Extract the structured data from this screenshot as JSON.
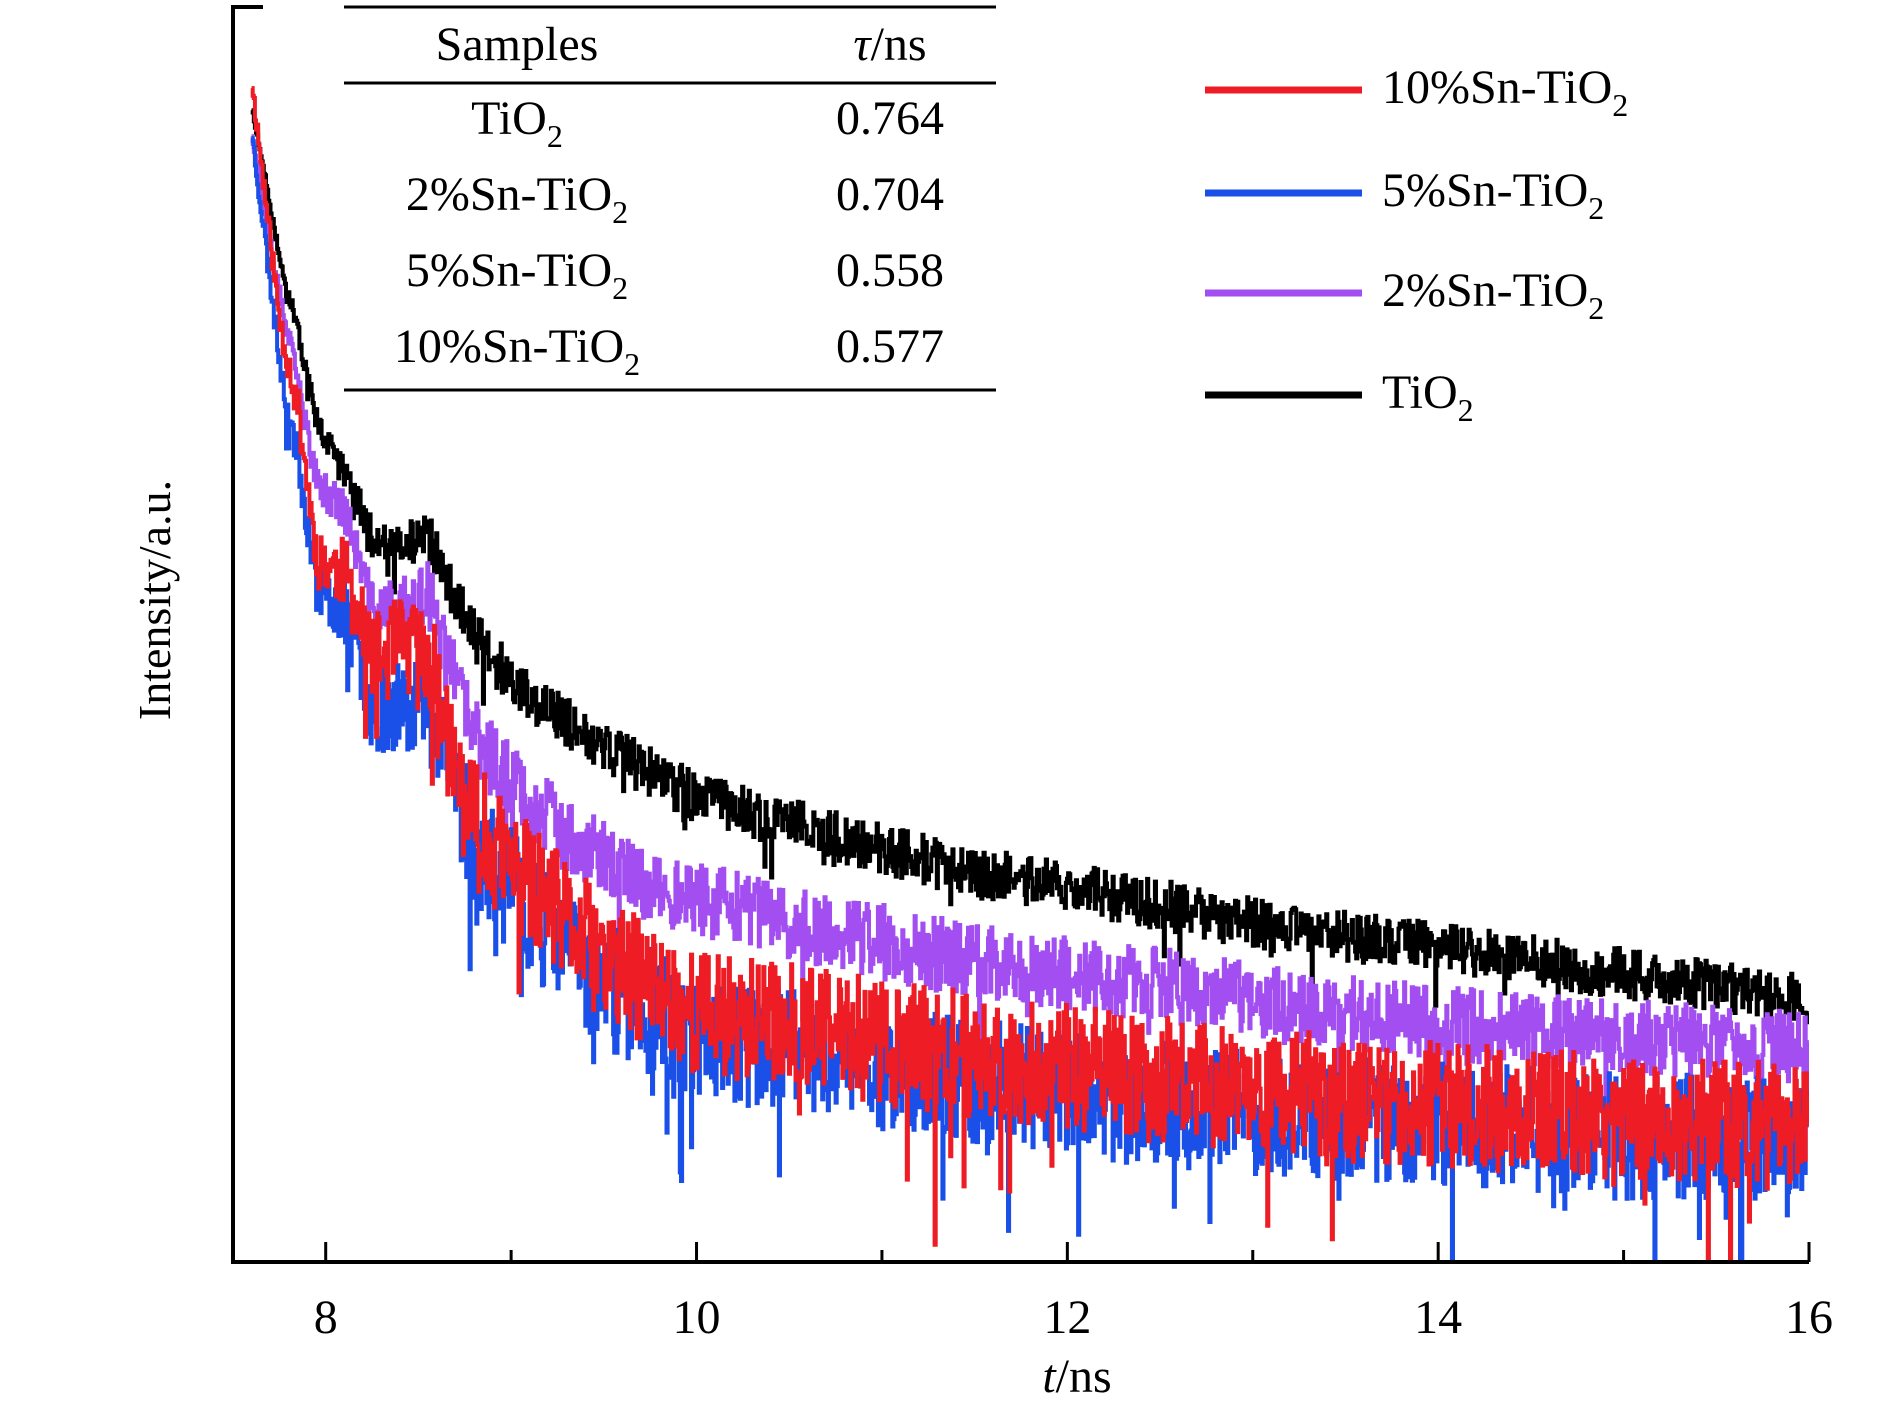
{
  "chart_data": {
    "type": "line",
    "xlabel": {
      "italic": "t",
      "rest": "/ns"
    },
    "ylabel": "Intensity/a.u.",
    "xlim": [
      7.5,
      16
    ],
    "ylim": [
      0,
      1
    ],
    "x_ticks": [
      {
        "value": 8,
        "label": "8"
      },
      {
        "value": 10,
        "label": "10"
      },
      {
        "value": 12,
        "label": "12"
      },
      {
        "value": 14,
        "label": "14"
      },
      {
        "value": 16,
        "label": "16"
      }
    ],
    "y_ticks": [],
    "legend_position": "top-right",
    "series": [
      {
        "name": {
          "main": "10%Sn-TiO",
          "sub": "2"
        },
        "color": "#ee1c24",
        "x": [
          7.6,
          7.75,
          7.85,
          7.95,
          8.1,
          8.25,
          8.4,
          8.55,
          8.7,
          8.8,
          8.9,
          9.1,
          9.3,
          9.5,
          9.75,
          10.0,
          10.5,
          11.0,
          11.5,
          12.0,
          12.5,
          13.0,
          13.5,
          14.0,
          14.5,
          15.0,
          15.5,
          16.0
        ],
        "y": [
          0.94,
          0.75,
          0.68,
          0.56,
          0.55,
          0.48,
          0.49,
          0.48,
          0.39,
          0.35,
          0.33,
          0.3,
          0.27,
          0.24,
          0.22,
          0.2,
          0.19,
          0.175,
          0.165,
          0.155,
          0.145,
          0.14,
          0.13,
          0.125,
          0.12,
          0.115,
          0.11,
          0.11
        ],
        "noise": 0.05,
        "seed": 11
      },
      {
        "name": {
          "main": "5%Sn-TiO",
          "sub": "2"
        },
        "color": "#1a4fe8",
        "x": [
          7.6,
          7.75,
          7.85,
          7.95,
          8.1,
          8.25,
          8.4,
          8.55,
          8.7,
          8.8,
          8.9,
          9.1,
          9.3,
          9.5,
          9.75,
          10.0,
          10.5,
          11.0,
          11.5,
          12.0,
          12.5,
          13.0,
          13.5,
          14.0,
          14.5,
          15.0,
          15.5,
          16.0
        ],
        "y": [
          0.9,
          0.72,
          0.64,
          0.54,
          0.52,
          0.44,
          0.45,
          0.45,
          0.38,
          0.33,
          0.31,
          0.28,
          0.25,
          0.22,
          0.2,
          0.18,
          0.17,
          0.155,
          0.145,
          0.135,
          0.125,
          0.12,
          0.115,
          0.11,
          0.105,
          0.1,
          0.1,
          0.1
        ],
        "noise": 0.05,
        "seed": 23
      },
      {
        "name": {
          "main": "2%Sn-TiO",
          "sub": "2"
        },
        "color": "#a24ef0",
        "x": [
          7.6,
          7.75,
          7.85,
          7.95,
          8.1,
          8.25,
          8.4,
          8.55,
          8.7,
          8.8,
          8.9,
          9.1,
          9.3,
          9.5,
          9.75,
          10.0,
          10.5,
          11.0,
          11.5,
          12.0,
          12.5,
          13.0,
          13.5,
          14.0,
          14.5,
          15.0,
          15.5,
          16.0
        ],
        "y": [
          0.9,
          0.77,
          0.7,
          0.62,
          0.6,
          0.52,
          0.52,
          0.53,
          0.46,
          0.42,
          0.4,
          0.37,
          0.34,
          0.32,
          0.3,
          0.29,
          0.27,
          0.255,
          0.24,
          0.23,
          0.22,
          0.21,
          0.2,
          0.19,
          0.185,
          0.18,
          0.175,
          0.17
        ],
        "noise": 0.03,
        "seed": 37
      },
      {
        "name": {
          "main": "TiO",
          "sub": "2"
        },
        "color": "#000000",
        "x": [
          7.6,
          7.75,
          7.85,
          7.95,
          8.1,
          8.25,
          8.4,
          8.55,
          8.7,
          8.8,
          8.9,
          9.1,
          9.3,
          9.5,
          9.75,
          10.0,
          10.5,
          11.0,
          11.5,
          12.0,
          12.5,
          13.0,
          13.5,
          14.0,
          14.5,
          15.0,
          15.5,
          16.0
        ],
        "y": [
          0.92,
          0.8,
          0.74,
          0.67,
          0.63,
          0.58,
          0.57,
          0.58,
          0.53,
          0.5,
          0.48,
          0.45,
          0.43,
          0.41,
          0.39,
          0.37,
          0.35,
          0.33,
          0.31,
          0.3,
          0.285,
          0.27,
          0.26,
          0.25,
          0.24,
          0.23,
          0.22,
          0.21
        ],
        "noise": 0.02,
        "seed": 51
      }
    ],
    "inset_table": {
      "headers": [
        {
          "main": "Samples"
        },
        {
          "italic": "τ",
          "main": "/ns"
        }
      ],
      "rows": [
        {
          "sample": {
            "main": "TiO",
            "sub": "2"
          },
          "tau": "0.764"
        },
        {
          "sample": {
            "main": "2%Sn-TiO",
            "sub": "2"
          },
          "tau": "0.704"
        },
        {
          "sample": {
            "main": "5%Sn-TiO",
            "sub": "2"
          },
          "tau": "0.558"
        },
        {
          "sample": {
            "main": "10%Sn-TiO",
            "sub": "2"
          },
          "tau": "0.577"
        }
      ]
    }
  }
}
